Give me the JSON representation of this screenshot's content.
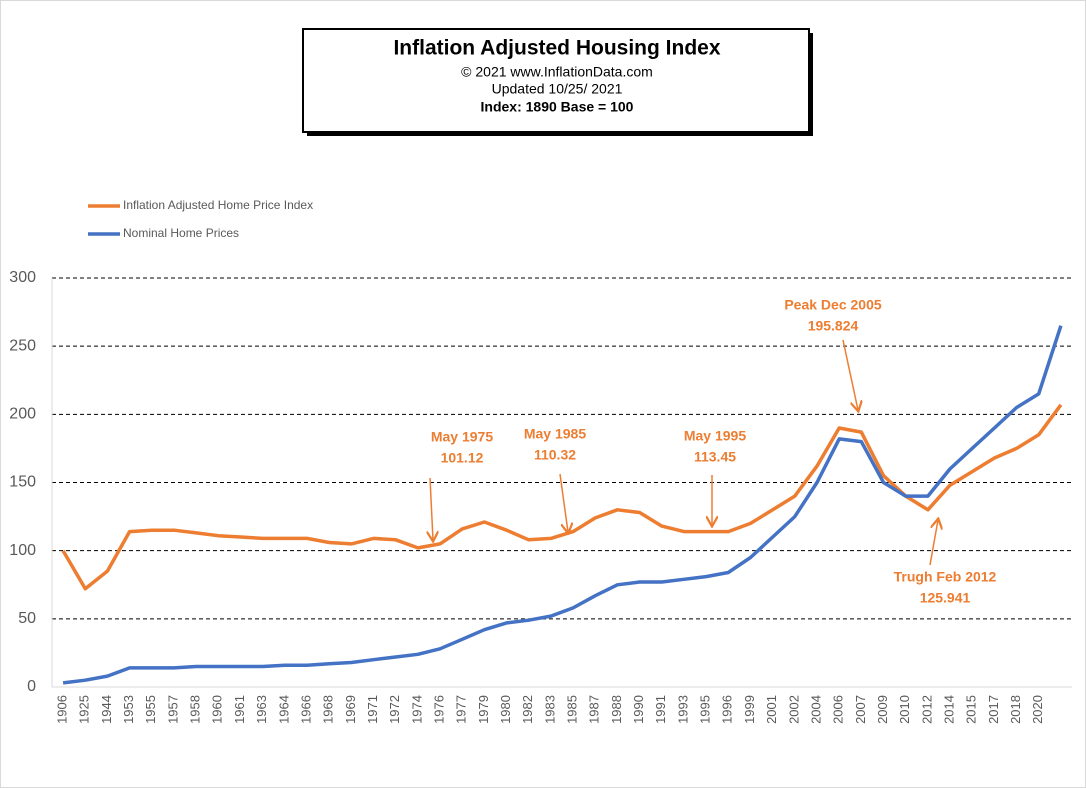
{
  "chart_data": {
    "type": "line",
    "title": "Inflation Adjusted Housing Index",
    "subtitle": [
      "© 2021  www.InflationData.com",
      "Updated   10/25/ 2021",
      "Index: 1890 Base = 100"
    ],
    "categories": [
      "1906",
      "1925",
      "1944",
      "1953",
      "1955",
      "1957",
      "1958",
      "1960",
      "1961",
      "1963",
      "1964",
      "1966",
      "1968",
      "1969",
      "1971",
      "1972",
      "1974",
      "1976",
      "1977",
      "1979",
      "1980",
      "1982",
      "1983",
      "1985",
      "1987",
      "1988",
      "1990",
      "1991",
      "1993",
      "1995",
      "1996",
      "1999",
      "2001",
      "2002",
      "2004",
      "2006",
      "2007",
      "2009",
      "2010",
      "2012",
      "2014",
      "2015",
      "2017",
      "2018",
      "2020",
      null
    ],
    "series": [
      {
        "name": "Inflation Adjusted Home Price Index",
        "color": "#ed7d31",
        "values": [
          100,
          72,
          85,
          114,
          115,
          115,
          113,
          111,
          110,
          109,
          109,
          109,
          106,
          105,
          109,
          108,
          102,
          105,
          116,
          121,
          115,
          108,
          109,
          114,
          124,
          130,
          128,
          118,
          114,
          114,
          114,
          120,
          130,
          140,
          162,
          190,
          187,
          155,
          140,
          130,
          148,
          158,
          168,
          175,
          185,
          207
        ]
      },
      {
        "name": "Nominal Home Prices",
        "color": "#4472c4",
        "values": [
          3,
          5,
          8,
          14,
          14,
          14,
          15,
          15,
          15,
          15,
          16,
          16,
          17,
          18,
          20,
          22,
          24,
          28,
          35,
          42,
          47,
          49,
          52,
          58,
          67,
          75,
          77,
          77,
          79,
          81,
          84,
          95,
          110,
          125,
          150,
          182,
          180,
          150,
          140,
          140,
          160,
          175,
          190,
          205,
          215,
          265
        ]
      }
    ],
    "ylim": [
      0,
      300
    ],
    "yticks": [
      0,
      50,
      100,
      150,
      200,
      250,
      300
    ],
    "grid": true,
    "annotations": [
      [
        "May 1975",
        "101.12"
      ],
      [
        "May 1985",
        "110.32"
      ],
      [
        "May 1995",
        "113.45"
      ],
      [
        "Peak Dec 2005",
        "195.824"
      ],
      [
        "Trugh Feb 2012",
        "125.941"
      ]
    ]
  }
}
